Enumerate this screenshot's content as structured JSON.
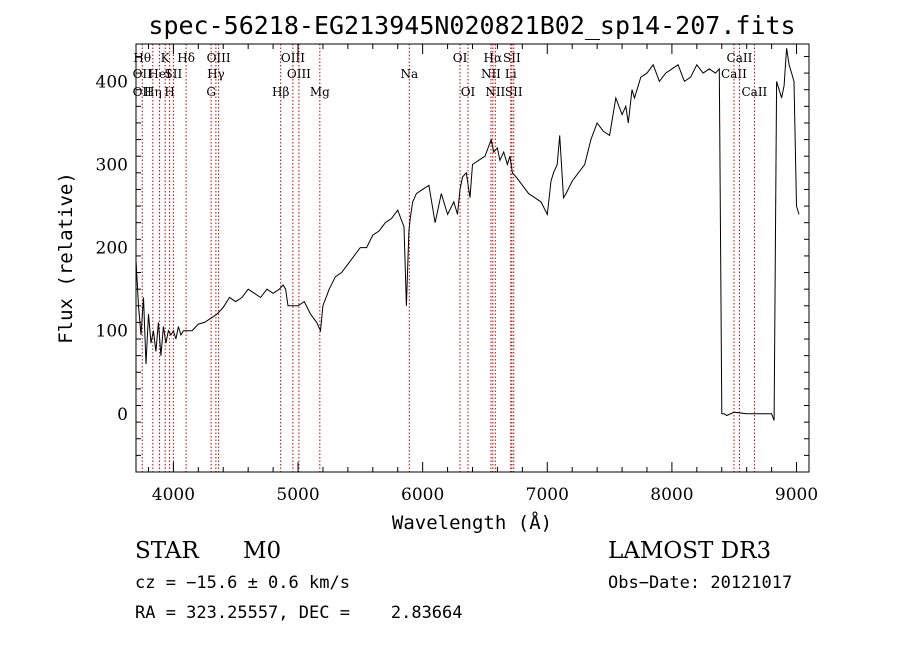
{
  "chart_data": {
    "type": "line",
    "title": "spec-56218-EG213945N020821B02_sp14-207.fits",
    "xlabel": "Wavelength (Å)",
    "ylabel": "Flux (relative)",
    "xlim": [
      3700,
      9100
    ],
    "ylim": [
      -70,
      445
    ],
    "xticks": [
      4000,
      5000,
      6000,
      7000,
      8000,
      9000
    ],
    "yticks": [
      0,
      100,
      200,
      300,
      400
    ],
    "xtick_labels": [
      "4000",
      "5000",
      "6000",
      "7000",
      "8000",
      "9000"
    ],
    "ytick_labels": [
      "0",
      "100",
      "200",
      "300",
      "400"
    ],
    "grid": false,
    "line_color": "#000000",
    "marker_color": "#c00000",
    "series": [
      {
        "x": [
          3700,
          3720,
          3740,
          3760,
          3780,
          3800,
          3820,
          3840,
          3860,
          3880,
          3900,
          3920,
          3940,
          3960,
          3980,
          4000,
          4020,
          4040,
          4060,
          4080,
          4100,
          4150,
          4200,
          4250,
          4300,
          4350,
          4400,
          4450,
          4500,
          4550,
          4600,
          4650,
          4700,
          4750,
          4800,
          4850,
          4880,
          4900,
          4920,
          4950,
          5000,
          5050,
          5100,
          5150,
          5180,
          5200,
          5250,
          5300,
          5350,
          5400,
          5450,
          5500,
          5550,
          5600,
          5650,
          5700,
          5750,
          5800,
          5850,
          5870,
          5890,
          5900,
          5920,
          5950,
          6000,
          6050,
          6100,
          6150,
          6200,
          6250,
          6280,
          6300,
          6320,
          6350,
          6380,
          6400,
          6450,
          6500,
          6550,
          6570,
          6600,
          6620,
          6650,
          6680,
          6700,
          6720,
          6750,
          6800,
          6850,
          6900,
          6950,
          7000,
          7030,
          7050,
          7080,
          7100,
          7130,
          7150,
          7200,
          7250,
          7300,
          7350,
          7400,
          7450,
          7500,
          7550,
          7600,
          7630,
          7650,
          7680,
          7700,
          7750,
          7800,
          7850,
          7900,
          7950,
          8000,
          8050,
          8100,
          8150,
          8200,
          8250,
          8300,
          8350,
          8380,
          8400,
          8410,
          8420,
          8440,
          8500,
          8600,
          8700,
          8800,
          8820,
          8840,
          8860,
          8880,
          8900,
          8920,
          8940,
          8960,
          8980,
          9000,
          9020
        ],
        "y": [
          185,
          130,
          95,
          140,
          60,
          120,
          85,
          100,
          75,
          110,
          70,
          105,
          85,
          100,
          95,
          100,
          90,
          105,
          95,
          100,
          100,
          100,
          108,
          110,
          115,
          120,
          128,
          140,
          135,
          140,
          150,
          145,
          140,
          150,
          145,
          150,
          155,
          150,
          130,
          130,
          130,
          135,
          120,
          110,
          100,
          130,
          150,
          165,
          170,
          180,
          190,
          200,
          200,
          215,
          220,
          230,
          235,
          245,
          225,
          130,
          220,
          235,
          255,
          265,
          270,
          275,
          230,
          265,
          240,
          255,
          240,
          270,
          285,
          290,
          260,
          300,
          305,
          310,
          330,
          315,
          320,
          305,
          315,
          300,
          310,
          290,
          285,
          275,
          265,
          260,
          255,
          240,
          280,
          290,
          300,
          335,
          260,
          265,
          280,
          290,
          300,
          330,
          350,
          340,
          335,
          380,
          360,
          370,
          350,
          390,
          380,
          405,
          410,
          420,
          400,
          410,
          415,
          420,
          400,
          405,
          420,
          410,
          415,
          410,
          415,
          0,
          0,
          0,
          -2,
          2,
          0,
          0,
          0,
          -8,
          400,
          390,
          380,
          395,
          440,
          420,
          410,
          400,
          250,
          240
        ]
      }
    ],
    "line_markers": [
      {
        "x": 3750,
        "labels": [
          "Hθ",
          "OII",
          "OII"
        ]
      },
      {
        "x": 3835,
        "labels": [
          "",
          "",
          "Hη"
        ]
      },
      {
        "x": 3889,
        "labels": [
          "",
          "HeI",
          ""
        ]
      },
      {
        "x": 3934,
        "labels": [
          "K",
          "",
          ""
        ]
      },
      {
        "x": 3970,
        "labels": [
          "",
          "",
          "H"
        ]
      },
      {
        "x": 4000,
        "labels": [
          "",
          "SII",
          ""
        ]
      },
      {
        "x": 4102,
        "labels": [
          "Hδ",
          "",
          ""
        ]
      },
      {
        "x": 4303,
        "labels": [
          "",
          "",
          "G"
        ]
      },
      {
        "x": 4341,
        "labels": [
          "",
          "Hγ",
          ""
        ]
      },
      {
        "x": 4363,
        "labels": [
          "OIII",
          "",
          ""
        ]
      },
      {
        "x": 4861,
        "labels": [
          "",
          "",
          "Hβ"
        ]
      },
      {
        "x": 4959,
        "labels": [
          "OIII",
          "",
          ""
        ]
      },
      {
        "x": 5007,
        "labels": [
          "",
          "OIII",
          ""
        ]
      },
      {
        "x": 5175,
        "labels": [
          "",
          "",
          "Mg"
        ]
      },
      {
        "x": 5893,
        "labels": [
          "",
          "Na",
          ""
        ]
      },
      {
        "x": 6300,
        "labels": [
          "OI",
          "",
          ""
        ]
      },
      {
        "x": 6364,
        "labels": [
          "",
          "",
          "OI"
        ]
      },
      {
        "x": 6548,
        "labels": [
          "",
          "NII",
          ""
        ]
      },
      {
        "x": 6563,
        "labels": [
          "Hα",
          "",
          ""
        ]
      },
      {
        "x": 6583,
        "labels": [
          "",
          "",
          "NII"
        ]
      },
      {
        "x": 6707,
        "labels": [
          "",
          "Li",
          ""
        ]
      },
      {
        "x": 6716,
        "labels": [
          "SII",
          "",
          ""
        ]
      },
      {
        "x": 6731,
        "labels": [
          "",
          "",
          "SII"
        ]
      },
      {
        "x": 8498,
        "labels": [
          "",
          "CaII",
          ""
        ]
      },
      {
        "x": 8542,
        "labels": [
          "CaII",
          "",
          ""
        ]
      },
      {
        "x": 8662,
        "labels": [
          "",
          "",
          "CaII"
        ]
      }
    ]
  },
  "info": {
    "class": "STAR",
    "subclass": "M0",
    "survey": "LAMOST DR3",
    "cz": "cz = −15.6 ± 0.6 km/s",
    "obs_date": "Obs−Date: 20121017",
    "radec": "RA = 323.25557, DEC =    2.83664"
  }
}
